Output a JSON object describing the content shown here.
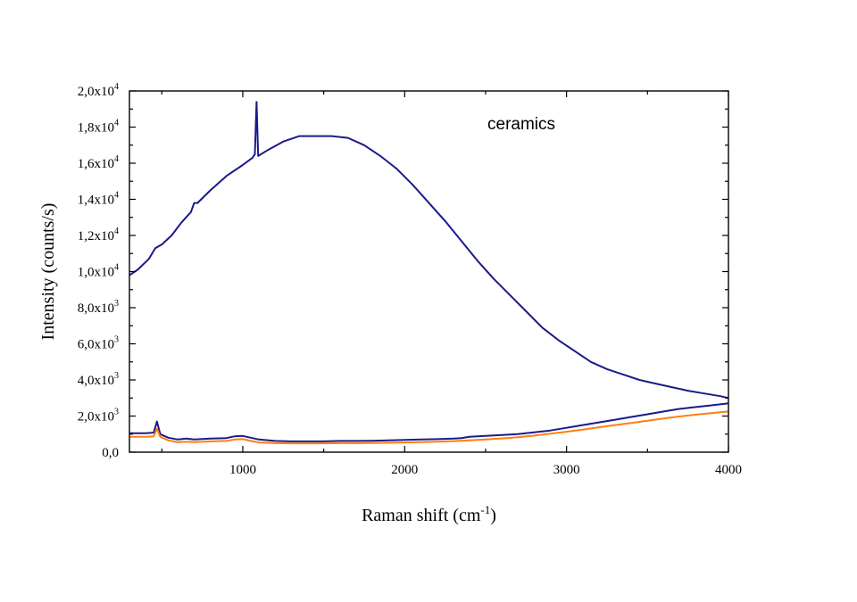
{
  "chart_data": {
    "type": "line",
    "xlabel": "Raman shift (cm",
    "xlabel_sup": "-1",
    "xlabel_tail": ")",
    "ylabel": "Intensity (counts/s)",
    "annotation": "ceramics",
    "xlim": [
      300,
      4000
    ],
    "ylim": [
      0,
      20000
    ],
    "x_ticks": [
      {
        "value": 1000,
        "label": "1000"
      },
      {
        "value": 2000,
        "label": "2000"
      },
      {
        "value": 3000,
        "label": "3000"
      },
      {
        "value": 4000,
        "label": "4000"
      }
    ],
    "y_ticks": [
      {
        "value": 0,
        "mant": "0,0",
        "exp": ""
      },
      {
        "value": 2000,
        "mant": "2,0x10",
        "exp": "3"
      },
      {
        "value": 4000,
        "mant": "4,0x10",
        "exp": "3"
      },
      {
        "value": 6000,
        "mant": "6,0x10",
        "exp": "3"
      },
      {
        "value": 8000,
        "mant": "8,0x10",
        "exp": "3"
      },
      {
        "value": 10000,
        "mant": "1,0x10",
        "exp": "4"
      },
      {
        "value": 12000,
        "mant": "1,2x10",
        "exp": "4"
      },
      {
        "value": 14000,
        "mant": "1,4x10",
        "exp": "4"
      },
      {
        "value": 16000,
        "mant": "1,6x10",
        "exp": "4"
      },
      {
        "value": 18000,
        "mant": "1,8x10",
        "exp": "4"
      },
      {
        "value": 20000,
        "mant": "2,0x10",
        "exp": "4"
      }
    ],
    "grid": false,
    "series": [
      {
        "color": "#1a1a8c",
        "points": [
          [
            300,
            9800
          ],
          [
            350,
            10100
          ],
          [
            420,
            10700
          ],
          [
            460,
            11300
          ],
          [
            500,
            11500
          ],
          [
            560,
            12000
          ],
          [
            620,
            12700
          ],
          [
            680,
            13300
          ],
          [
            700,
            13800
          ],
          [
            720,
            13800
          ],
          [
            800,
            14500
          ],
          [
            900,
            15300
          ],
          [
            1000,
            15900
          ],
          [
            1060,
            16300
          ],
          [
            1075,
            16500
          ],
          [
            1085,
            19400
          ],
          [
            1095,
            16400
          ],
          [
            1150,
            16700
          ],
          [
            1250,
            17200
          ],
          [
            1350,
            17500
          ],
          [
            1450,
            17500
          ],
          [
            1550,
            17500
          ],
          [
            1650,
            17400
          ],
          [
            1750,
            17000
          ],
          [
            1850,
            16400
          ],
          [
            1950,
            15700
          ],
          [
            2050,
            14800
          ],
          [
            2150,
            13800
          ],
          [
            2250,
            12800
          ],
          [
            2350,
            11700
          ],
          [
            2450,
            10600
          ],
          [
            2550,
            9600
          ],
          [
            2650,
            8700
          ],
          [
            2750,
            7800
          ],
          [
            2850,
            6900
          ],
          [
            2950,
            6200
          ],
          [
            3050,
            5600
          ],
          [
            3150,
            5000
          ],
          [
            3250,
            4600
          ],
          [
            3350,
            4300
          ],
          [
            3450,
            4000
          ],
          [
            3550,
            3800
          ],
          [
            3650,
            3600
          ],
          [
            3750,
            3400
          ],
          [
            3850,
            3250
          ],
          [
            3950,
            3100
          ],
          [
            4000,
            3000
          ]
        ]
      },
      {
        "color": "#1a1a8c",
        "points": [
          [
            300,
            1050
          ],
          [
            400,
            1050
          ],
          [
            450,
            1080
          ],
          [
            470,
            1700
          ],
          [
            490,
            1000
          ],
          [
            540,
            800
          ],
          [
            600,
            700
          ],
          [
            650,
            750
          ],
          [
            700,
            700
          ],
          [
            800,
            750
          ],
          [
            900,
            780
          ],
          [
            950,
            880
          ],
          [
            1000,
            900
          ],
          [
            1050,
            800
          ],
          [
            1100,
            700
          ],
          [
            1200,
            620
          ],
          [
            1300,
            600
          ],
          [
            1400,
            600
          ],
          [
            1500,
            600
          ],
          [
            1600,
            620
          ],
          [
            1700,
            620
          ],
          [
            1800,
            630
          ],
          [
            1900,
            650
          ],
          [
            2000,
            680
          ],
          [
            2100,
            700
          ],
          [
            2200,
            720
          ],
          [
            2300,
            750
          ],
          [
            2350,
            780
          ],
          [
            2400,
            850
          ],
          [
            2500,
            900
          ],
          [
            2600,
            950
          ],
          [
            2700,
            1000
          ],
          [
            2800,
            1100
          ],
          [
            2900,
            1200
          ],
          [
            3000,
            1350
          ],
          [
            3100,
            1500
          ],
          [
            3200,
            1650
          ],
          [
            3300,
            1800
          ],
          [
            3400,
            1950
          ],
          [
            3500,
            2100
          ],
          [
            3600,
            2250
          ],
          [
            3700,
            2400
          ],
          [
            3800,
            2500
          ],
          [
            3900,
            2600
          ],
          [
            4000,
            2700
          ]
        ]
      },
      {
        "color": "#ff7f0e",
        "points": [
          [
            300,
            850
          ],
          [
            400,
            850
          ],
          [
            450,
            880
          ],
          [
            470,
            1300
          ],
          [
            490,
            850
          ],
          [
            540,
            650
          ],
          [
            600,
            550
          ],
          [
            650,
            580
          ],
          [
            700,
            560
          ],
          [
            800,
            600
          ],
          [
            900,
            620
          ],
          [
            950,
            700
          ],
          [
            1000,
            720
          ],
          [
            1050,
            620
          ],
          [
            1100,
            540
          ],
          [
            1200,
            500
          ],
          [
            1300,
            490
          ],
          [
            1400,
            490
          ],
          [
            1500,
            490
          ],
          [
            1600,
            500
          ],
          [
            1700,
            500
          ],
          [
            1800,
            510
          ],
          [
            1900,
            520
          ],
          [
            2000,
            540
          ],
          [
            2100,
            560
          ],
          [
            2200,
            580
          ],
          [
            2300,
            610
          ],
          [
            2400,
            650
          ],
          [
            2500,
            700
          ],
          [
            2600,
            760
          ],
          [
            2700,
            830
          ],
          [
            2800,
            920
          ],
          [
            2900,
            1020
          ],
          [
            3000,
            1130
          ],
          [
            3100,
            1250
          ],
          [
            3200,
            1380
          ],
          [
            3300,
            1500
          ],
          [
            3400,
            1620
          ],
          [
            3500,
            1740
          ],
          [
            3600,
            1860
          ],
          [
            3700,
            1980
          ],
          [
            3800,
            2080
          ],
          [
            3900,
            2170
          ],
          [
            4000,
            2250
          ]
        ]
      }
    ]
  }
}
